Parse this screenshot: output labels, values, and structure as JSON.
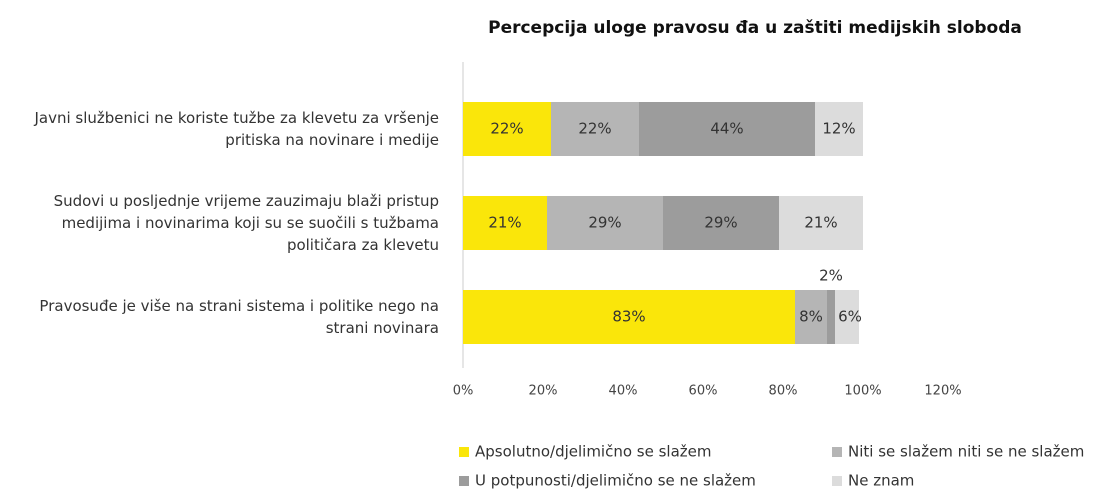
{
  "chart_data": {
    "type": "stacked-bar-horizontal",
    "title": "Percepcija uloge pravosu đa u zaštiti medijskih sloboda",
    "categories": [
      "Javni službenici ne koriste tužbe za klevetu za vršenje pritiska na novinare i medije",
      "Sudovi u posljednje vrijeme zauzimaju blaži pristup medijima i novinarima koji su se suočili s tužbama političara za klevetu",
      "Pravosuđe je više na strani sistema i politike nego na strani novinara"
    ],
    "series": [
      {
        "name": "Apsolutno/djelimično se slažem",
        "color": "#fae60a",
        "values": [
          22,
          21,
          83
        ],
        "value_labels": [
          "22%",
          "21%",
          "83%"
        ]
      },
      {
        "name": "Niti se slažem niti se ne slažem",
        "color": "#b5b5b5",
        "values": [
          22,
          29,
          8
        ],
        "value_labels": [
          "22%",
          "29%",
          "8%"
        ]
      },
      {
        "name": "U potpunosti/djelimično se ne slažem",
        "color": "#9c9c9c",
        "values": [
          44,
          29,
          2
        ],
        "value_labels": [
          "44%",
          "29%",
          "2%"
        ]
      },
      {
        "name": "Ne znam",
        "color": "#dcdcdc",
        "values": [
          12,
          21,
          6
        ],
        "value_labels": [
          "12%",
          "21%",
          "6%"
        ]
      }
    ],
    "xlim": [
      0,
      120
    ],
    "xticks": [
      {
        "value": 0,
        "label": "0%"
      },
      {
        "value": 20,
        "label": "20%"
      },
      {
        "value": 40,
        "label": "40%"
      },
      {
        "value": 60,
        "label": "60%"
      },
      {
        "value": 80,
        "label": "80%"
      },
      {
        "value": 100,
        "label": "100%"
      },
      {
        "value": 120,
        "label": "120%"
      }
    ]
  }
}
